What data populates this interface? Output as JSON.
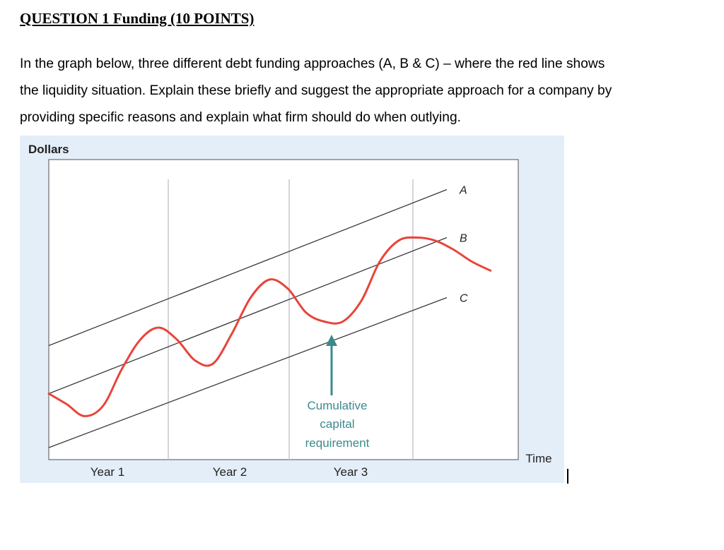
{
  "document": {
    "heading": "QUESTION 1 Funding (10 POINTS)",
    "paragraph_lines": [
      "In the graph below, three different debt funding approaches (A, B & C) – where the red line shows",
      "the liquidity situation. Explain these briefly and suggest the appropriate approach for a company by",
      "providing specific reasons and explain what firm should do when outlying."
    ]
  },
  "chart_data": {
    "type": "line",
    "ylabel": "Dollars",
    "xlabel": "Time",
    "x_tick_labels": [
      "Year 1",
      "Year 2",
      "Year 3"
    ],
    "annotation": [
      "Cumulative",
      "capital",
      "requirement"
    ],
    "series": [
      {
        "name": "A",
        "kind": "straight",
        "start_level": 0.38,
        "end_level": 0.9
      },
      {
        "name": "B",
        "kind": "straight",
        "start_level": 0.22,
        "end_level": 0.74
      },
      {
        "name": "C",
        "kind": "straight",
        "start_level": 0.04,
        "end_level": 0.54
      }
    ],
    "liquidity_curve": {
      "color": "#e8443a",
      "x": [
        0.0,
        0.038,
        0.076,
        0.116,
        0.155,
        0.195,
        0.234,
        0.273,
        0.312,
        0.35,
        0.39,
        0.43,
        0.47,
        0.509,
        0.548,
        0.587,
        0.626,
        0.666,
        0.705,
        0.745,
        0.784,
        0.823,
        0.862,
        0.901,
        0.941
      ],
      "y": [
        0.22,
        0.185,
        0.145,
        0.18,
        0.3,
        0.4,
        0.44,
        0.4,
        0.33,
        0.32,
        0.42,
        0.54,
        0.6,
        0.57,
        0.49,
        0.46,
        0.46,
        0.53,
        0.66,
        0.73,
        0.74,
        0.73,
        0.7,
        0.66,
        0.63
      ]
    },
    "colors": {
      "frame": "#6b6b6b",
      "lines": "#3a3a3a",
      "gridlines": "#c8c8c8",
      "annotation": "#3b8a8c",
      "panel_background": "#e4eef9"
    }
  }
}
